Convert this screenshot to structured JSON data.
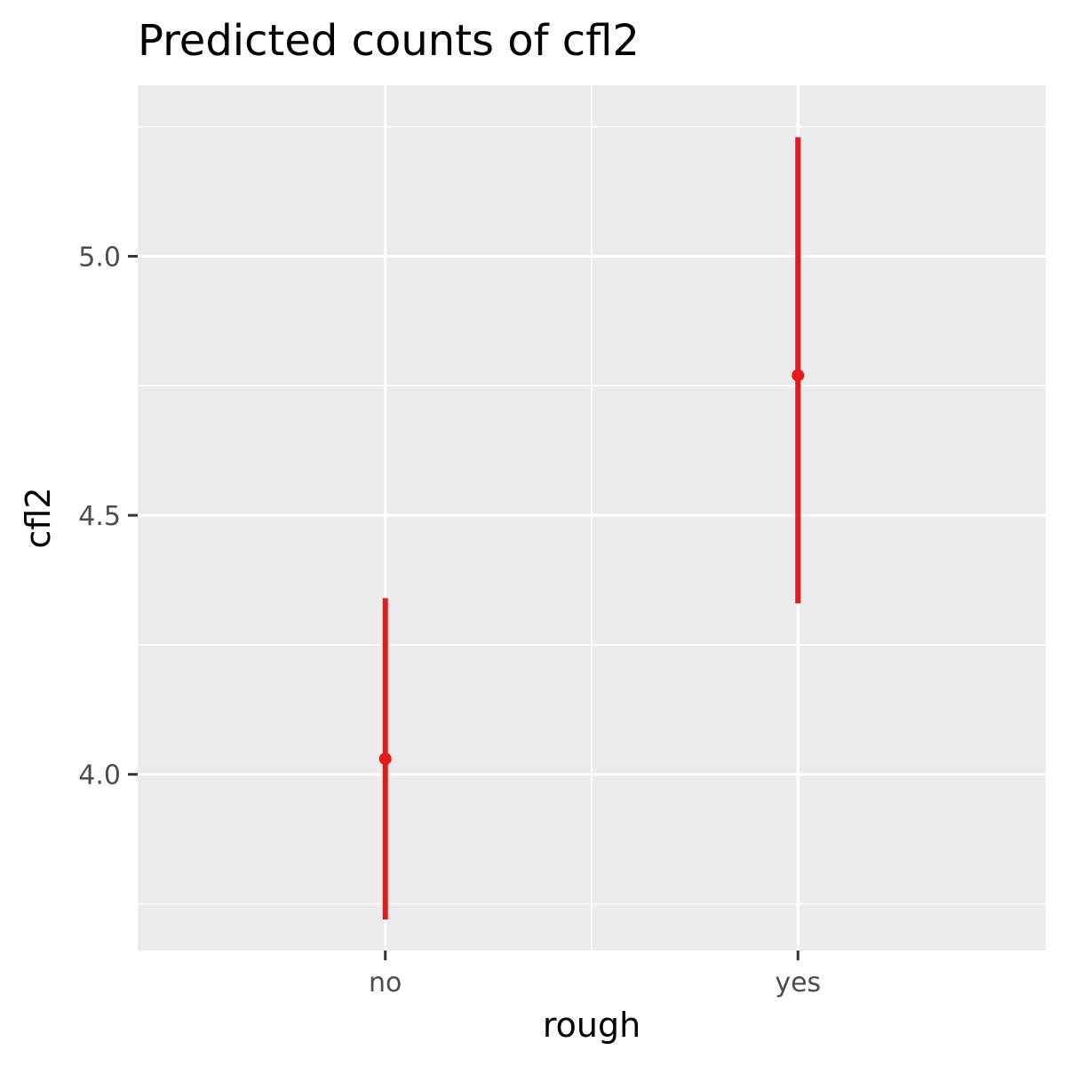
{
  "chart_data": {
    "type": "scatter",
    "title": "Predicted counts of cfl2",
    "xlabel": "rough",
    "ylabel": "cfl2",
    "categories": [
      "no",
      "yes"
    ],
    "series": [
      {
        "values": [
          4.03,
          4.77
        ],
        "lower": [
          3.72,
          4.33
        ],
        "upper": [
          4.34,
          5.23
        ]
      }
    ],
    "ylim": [
      3.66,
      5.33
    ],
    "yticks": [
      4.0,
      4.5,
      5.0
    ],
    "ytick_labels": [
      "4.0",
      "4.5",
      "5.0"
    ],
    "grid": true,
    "colors": {
      "panel_background": "#ebebeb",
      "grid": "#ffffff",
      "series": "#e41a1c",
      "tick_label": "#4d4d4d",
      "tick_mark": "#333333"
    }
  }
}
